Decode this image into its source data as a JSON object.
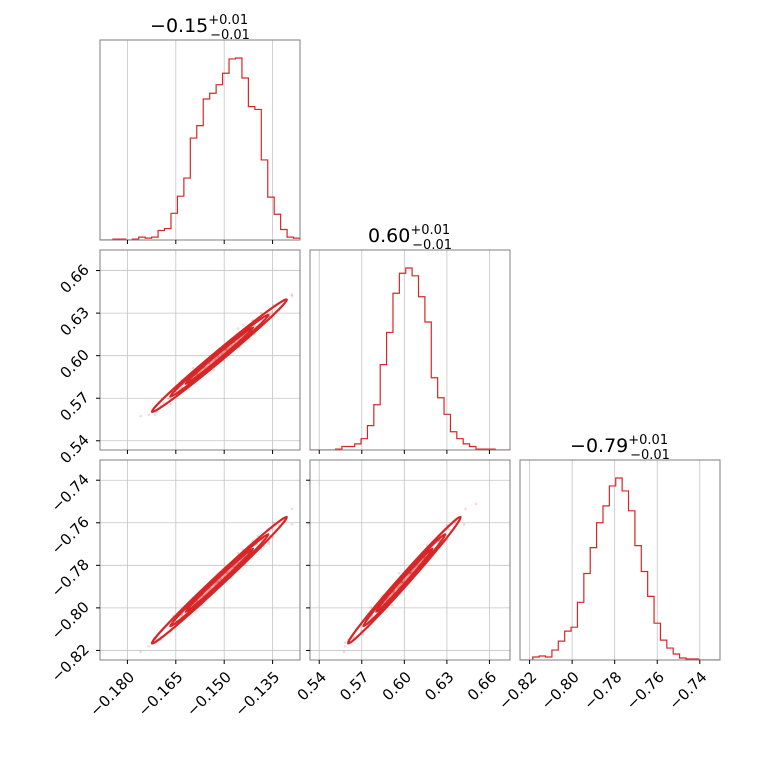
{
  "chart_data": {
    "type": "corner",
    "parameters": [
      {
        "axis_range": [
          -0.1885,
          -0.1265
        ],
        "tick_values": [
          -0.18,
          -0.165,
          -0.15,
          -0.135
        ],
        "tick_labels": [
          "−0.180",
          "−0.165",
          "−0.150",
          "−0.135"
        ]
      },
      {
        "axis_range": [
          0.5335,
          0.6745
        ],
        "tick_values": [
          0.54,
          0.57,
          0.6,
          0.63,
          0.66
        ],
        "tick_labels": [
          "0.54",
          "0.57",
          "0.60",
          "0.63",
          "0.66"
        ]
      },
      {
        "axis_range": [
          -0.8245,
          -0.7305
        ],
        "tick_values": [
          -0.82,
          -0.8,
          -0.78,
          -0.76,
          -0.74
        ],
        "tick_labels": [
          "−0.82",
          "−0.80",
          "−0.78",
          "−0.76",
          "−0.74"
        ]
      }
    ],
    "titles": [
      {
        "value": "−0.15",
        "upper": "+0.01",
        "lower": "−0.01"
      },
      {
        "value": "0.60",
        "upper": "+0.01",
        "lower": "−0.01"
      },
      {
        "value": "−0.79",
        "upper": "+0.01",
        "lower": "−0.01"
      }
    ],
    "histograms": [
      {
        "bin_edges": [
          -0.1885,
          -0.1865,
          -0.1845,
          -0.1825,
          -0.1805,
          -0.1785,
          -0.1765,
          -0.1745,
          -0.1725,
          -0.1705,
          -0.1685,
          -0.1665,
          -0.1645,
          -0.1625,
          -0.1605,
          -0.1585,
          -0.1565,
          -0.1545,
          -0.1525,
          -0.1505,
          -0.1485,
          -0.1465,
          -0.1445,
          -0.1425,
          -0.1405,
          -0.1385,
          -0.1365,
          -0.1345,
          -0.1325,
          -0.1305,
          -0.1285,
          -0.1265
        ],
        "counts": [
          0,
          0,
          1,
          1,
          0,
          1,
          3,
          2,
          3,
          10,
          12,
          28,
          46,
          65,
          107,
          120,
          148,
          154,
          163,
          175,
          190,
          191,
          170,
          140,
          137,
          84,
          45,
          27,
          11,
          3,
          2
        ]
      },
      {
        "bin_edges": [
          0.5335,
          0.538,
          0.5425,
          0.547,
          0.5515,
          0.556,
          0.5605,
          0.565,
          0.5695,
          0.574,
          0.5785,
          0.583,
          0.5875,
          0.592,
          0.5965,
          0.601,
          0.6055,
          0.61,
          0.6145,
          0.619,
          0.6235,
          0.628,
          0.6325,
          0.637,
          0.6415,
          0.646,
          0.6505,
          0.655,
          0.6595,
          0.664,
          0.6685,
          0.6745
        ],
        "counts": [
          0,
          0,
          0,
          0,
          1,
          4,
          4,
          7,
          13,
          28,
          52,
          98,
          135,
          180,
          203,
          209,
          200,
          176,
          147,
          83,
          60,
          41,
          21,
          13,
          7,
          4,
          1,
          1,
          1,
          0,
          0
        ]
      },
      {
        "bin_edges": [
          -0.8245,
          -0.8215,
          -0.8185,
          -0.8155,
          -0.8125,
          -0.8095,
          -0.8065,
          -0.8035,
          -0.8005,
          -0.7975,
          -0.7945,
          -0.7915,
          -0.7885,
          -0.7855,
          -0.7825,
          -0.7795,
          -0.7765,
          -0.7735,
          -0.7705,
          -0.7675,
          -0.7645,
          -0.7615,
          -0.7585,
          -0.7555,
          -0.7525,
          -0.7495,
          -0.7465,
          -0.7435,
          -0.7405,
          -0.7375,
          -0.7345,
          -0.7305
        ],
        "counts": [
          0,
          0,
          3,
          4,
          3,
          10,
          19,
          29,
          33,
          58,
          87,
          113,
          138,
          155,
          175,
          183,
          170,
          150,
          115,
          89,
          64,
          37,
          20,
          12,
          6,
          2,
          1,
          1,
          0,
          0,
          0
        ]
      }
    ],
    "color": "#d62728",
    "grid": true
  }
}
